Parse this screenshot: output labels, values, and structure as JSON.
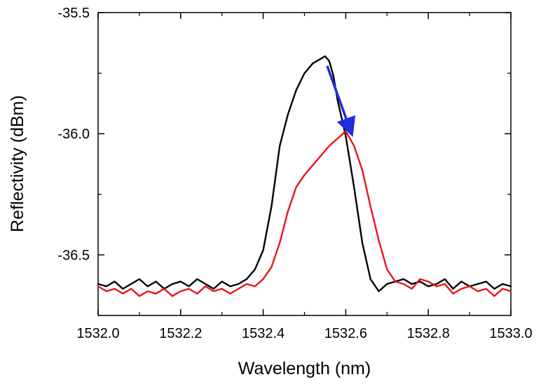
{
  "chart_data": {
    "type": "line",
    "title": "",
    "xlabel": "Wavelength (nm)",
    "ylabel": "Reflectivity (dBm)",
    "xlim": [
      1532.0,
      1533.0
    ],
    "ylim": [
      -36.75,
      -35.5
    ],
    "x_ticks": [
      "1532.0",
      "1532.2",
      "1532.4",
      "1532.6",
      "1532.8",
      "1533.0"
    ],
    "y_ticks": [
      "-35.5",
      "-36.0",
      "-36.5"
    ],
    "grid": false,
    "legend": "none",
    "series": [
      {
        "color": "#000000",
        "x": [
          1532.0,
          1532.02,
          1532.04,
          1532.06,
          1532.08,
          1532.1,
          1532.12,
          1532.14,
          1532.16,
          1532.18,
          1532.2,
          1532.22,
          1532.24,
          1532.26,
          1532.28,
          1532.3,
          1532.32,
          1532.34,
          1532.36,
          1532.38,
          1532.4,
          1532.42,
          1532.44,
          1532.46,
          1532.48,
          1532.5,
          1532.52,
          1532.54,
          1532.55,
          1532.56,
          1532.57,
          1532.58,
          1532.6,
          1532.62,
          1532.64,
          1532.66,
          1532.68,
          1532.7,
          1532.72,
          1532.74,
          1532.76,
          1532.78,
          1532.8,
          1532.82,
          1532.84,
          1532.86,
          1532.88,
          1532.9,
          1532.92,
          1532.94,
          1532.96,
          1532.98,
          1533.0
        ],
        "y": [
          -36.62,
          -36.63,
          -36.61,
          -36.64,
          -36.62,
          -36.6,
          -36.63,
          -36.61,
          -36.64,
          -36.62,
          -36.61,
          -36.63,
          -36.6,
          -36.62,
          -36.64,
          -36.61,
          -36.63,
          -36.62,
          -36.6,
          -36.56,
          -36.48,
          -36.3,
          -36.05,
          -35.92,
          -35.82,
          -35.75,
          -35.71,
          -35.69,
          -35.68,
          -35.7,
          -35.76,
          -35.86,
          -36.01,
          -36.22,
          -36.45,
          -36.6,
          -36.65,
          -36.62,
          -36.61,
          -36.6,
          -36.62,
          -36.61,
          -36.63,
          -36.62,
          -36.6,
          -36.64,
          -36.61,
          -36.63,
          -36.62,
          -36.61,
          -36.64,
          -36.62,
          -36.63
        ]
      },
      {
        "color": "#e8141c",
        "x": [
          1532.0,
          1532.02,
          1532.04,
          1532.06,
          1532.08,
          1532.1,
          1532.12,
          1532.14,
          1532.16,
          1532.18,
          1532.2,
          1532.22,
          1532.24,
          1532.26,
          1532.28,
          1532.3,
          1532.32,
          1532.34,
          1532.36,
          1532.38,
          1532.4,
          1532.42,
          1532.44,
          1532.46,
          1532.48,
          1532.5,
          1532.52,
          1532.54,
          1532.56,
          1532.58,
          1532.6,
          1532.62,
          1532.64,
          1532.66,
          1532.68,
          1532.7,
          1532.72,
          1532.74,
          1532.76,
          1532.78,
          1532.8,
          1532.82,
          1532.84,
          1532.86,
          1532.88,
          1532.9,
          1532.92,
          1532.94,
          1532.96,
          1532.98,
          1533.0
        ],
        "y": [
          -36.63,
          -36.65,
          -36.64,
          -36.66,
          -36.64,
          -36.67,
          -36.65,
          -36.66,
          -36.64,
          -36.67,
          -36.65,
          -36.64,
          -36.66,
          -36.63,
          -36.65,
          -36.64,
          -36.66,
          -36.64,
          -36.62,
          -36.63,
          -36.6,
          -36.55,
          -36.45,
          -36.32,
          -36.22,
          -36.17,
          -36.13,
          -36.09,
          -36.05,
          -36.02,
          -35.99,
          -36.05,
          -36.15,
          -36.3,
          -36.44,
          -36.56,
          -36.61,
          -36.62,
          -36.64,
          -36.6,
          -36.61,
          -36.63,
          -36.62,
          -36.66,
          -36.64,
          -36.63,
          -36.65,
          -36.64,
          -36.67,
          -36.64,
          -36.65
        ]
      }
    ],
    "annotations": [
      {
        "type": "arrow",
        "color": "#1f2ce0",
        "from": [
          1532.555,
          -35.72
        ],
        "to": [
          1532.61,
          -35.98
        ]
      }
    ]
  }
}
